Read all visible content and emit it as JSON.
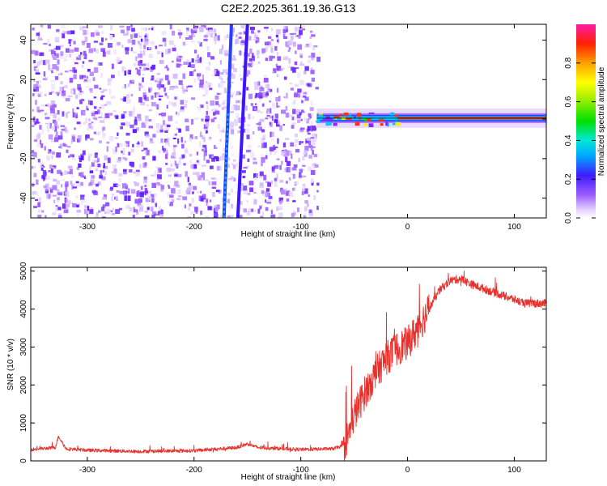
{
  "title": "C2E2.2025.361.19.36.G13",
  "chart_data": [
    {
      "type": "heatmap",
      "xlabel": "Height of straight line (km)",
      "ylabel": "Frequency (Hz)",
      "xlim": [
        -353,
        130
      ],
      "ylim": [
        -50,
        48
      ],
      "xticks": [
        -300,
        -200,
        -100,
        0,
        100
      ],
      "yticks": [
        -40,
        -20,
        0,
        20,
        40
      ],
      "xtick_labels": [
        "-300",
        "-200",
        "-100",
        "0",
        "100"
      ],
      "ytick_labels": [
        "-40",
        "-20",
        "0",
        "20",
        "40"
      ],
      "colorbar": {
        "label": "Normalized spectral amplitude",
        "range": [
          0,
          1
        ],
        "ticks": [
          0.0,
          0.2,
          0.4,
          0.6,
          0.8
        ],
        "tick_labels": [
          "0.0",
          "0.2",
          "0.4",
          "0.6",
          "0.8"
        ]
      },
      "features": [
        {
          "name": "noise",
          "x_range": [
            -353,
            -85
          ],
          "y_range": [
            -50,
            48
          ],
          "amplitude": 0.15
        },
        {
          "name": "streak-a",
          "x_start": -172,
          "y_start": -50,
          "x_end": -165,
          "y_end": 48,
          "amplitude": 0.25
        },
        {
          "name": "streak-b",
          "x_start": -159,
          "y_start": -50,
          "x_end": -150,
          "y_end": 48,
          "amplitude": 0.2
        },
        {
          "name": "carrier",
          "x_range": [
            -85,
            130
          ],
          "y_center": 0.5,
          "amplitude": 0.9
        }
      ]
    },
    {
      "type": "line",
      "xlabel": "Height of straight line (km)",
      "ylabel": "SNR (10 * v/v)",
      "xlim": [
        -353,
        130
      ],
      "ylim": [
        0,
        5100
      ],
      "xticks": [
        -300,
        -200,
        -100,
        0,
        100
      ],
      "yticks": [
        0,
        1000,
        2000,
        3000,
        4000,
        5000
      ],
      "xtick_labels": [
        "-300",
        "-200",
        "-100",
        "0",
        "100"
      ],
      "ytick_labels": [
        "0",
        "1000",
        "2000",
        "3000",
        "4000",
        "5000"
      ],
      "color": "#e8312c",
      "series": [
        {
          "x": [
            -353,
            -330,
            -327,
            -320,
            -300,
            -250,
            -200,
            -160,
            -150,
            -140,
            -100,
            -70,
            -60,
            -55,
            -50,
            -40,
            -30,
            -20,
            -10,
            0,
            10,
            20,
            30,
            40,
            50,
            60,
            70,
            80,
            90,
            100,
            110,
            120,
            130
          ],
          "values": [
            300,
            350,
            650,
            320,
            280,
            250,
            270,
            350,
            450,
            350,
            300,
            320,
            400,
            700,
            1200,
            1800,
            2300,
            2700,
            2950,
            3100,
            3500,
            4000,
            4500,
            4750,
            4800,
            4650,
            4550,
            4450,
            4350,
            4250,
            4150,
            4150,
            4150
          ]
        }
      ]
    }
  ]
}
